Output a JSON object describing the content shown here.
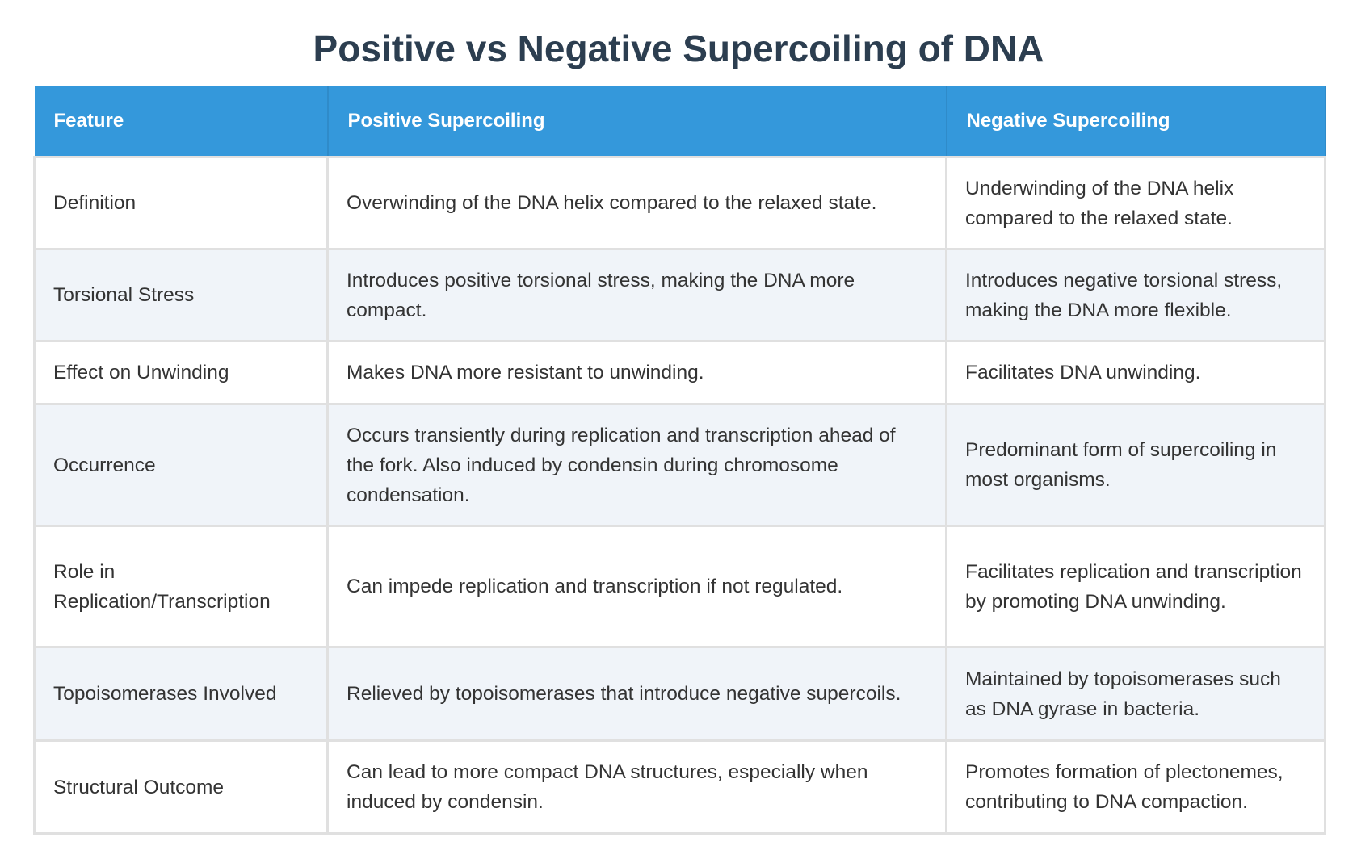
{
  "header": {
    "title": "Positive vs Negative Supercoiling of DNA"
  },
  "table": {
    "columns": [
      "Feature",
      "Positive Supercoiling",
      "Negative Supercoiling"
    ],
    "rows": [
      [
        "Definition",
        "Overwinding of the DNA helix compared to the relaxed state.",
        "Underwinding of the DNA helix compared to the relaxed state."
      ],
      [
        "Torsional Stress",
        "Introduces positive torsional stress, making the DNA more compact.",
        "Introduces negative torsional stress, making the DNA more flexible."
      ],
      [
        "Effect on Unwinding",
        "Makes DNA more resistant to unwinding.",
        "Facilitates DNA unwinding."
      ],
      [
        "Occurrence",
        "Occurs transiently during replication and transcription ahead of the fork. Also induced by condensin during chromosome condensation.",
        "Predominant form of supercoiling in most organisms."
      ],
      [
        "Role in Replication/Transcription",
        "Can impede replication and transcription if not regulated.",
        "Facilitates replication and transcription by promoting DNA unwinding."
      ],
      [
        "Topoisomerases Involved",
        "Relieved by topoisomerases that introduce negative supercoils.",
        "Maintained by topoisomerases such as DNA gyrase in bacteria."
      ],
      [
        "Structural Outcome",
        "Can lead to more compact DNA structures, especially when induced by condensin.",
        "Promotes formation of plectonemes, contributing to DNA compaction."
      ]
    ]
  }
}
